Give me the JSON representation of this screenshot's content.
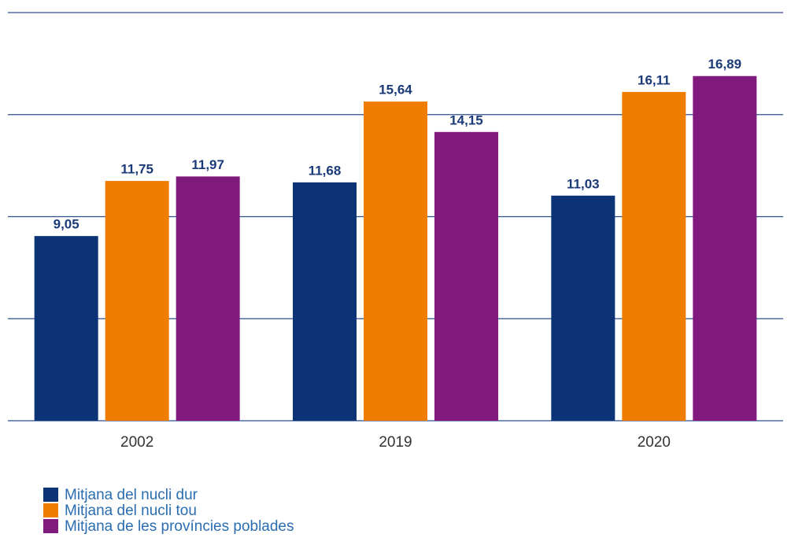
{
  "chart_data": {
    "type": "bar",
    "categories": [
      "2002",
      "2019",
      "2020"
    ],
    "series": [
      {
        "name": "Mitjana del nucli dur",
        "color": "#0b3376",
        "values": [
          9.05,
          11.68,
          11.03
        ],
        "value_labels": [
          "9,05",
          "11,68",
          "11,03"
        ]
      },
      {
        "name": "Mitjana del nucli tou",
        "color": "#ef7d00",
        "values": [
          11.75,
          15.64,
          16.11
        ],
        "value_labels": [
          "11,75",
          "15,64",
          "16,11"
        ]
      },
      {
        "name": "Mitjana de les províncies poblades",
        "color": "#801a7c",
        "values": [
          11.97,
          14.15,
          16.89
        ],
        "value_labels": [
          "11,97",
          "14,15",
          "16,89"
        ]
      }
    ],
    "ylim": [
      0,
      20
    ],
    "yticks": [
      0,
      5,
      10,
      15,
      20
    ],
    "grid": true
  }
}
